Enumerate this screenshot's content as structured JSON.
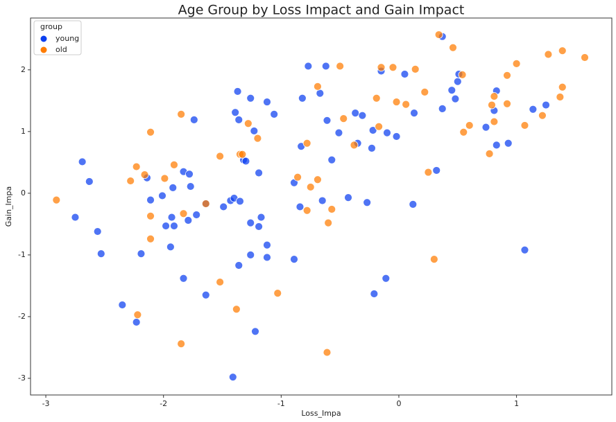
{
  "chart_data": {
    "type": "scatter",
    "title": "Age Group by Loss Impact and Gain Impact",
    "x_label": "Loss_Impa",
    "y_label": "Gain_Impa",
    "legend_title": "group",
    "legend": "upper left",
    "grid": false,
    "xlim": [
      -3.13,
      1.81
    ],
    "ylim": [
      -3.27,
      2.84
    ],
    "xticks": [
      -3,
      -2,
      -1,
      0,
      1
    ],
    "yticks": [
      -3,
      -2,
      -1,
      0,
      1,
      2
    ],
    "series": [
      {
        "name": "young",
        "color": "#0b3ff0",
        "x": [
          -2.75,
          -2.69,
          -2.63,
          -2.56,
          -2.53,
          -2.35,
          -2.23,
          -2.19,
          -2.14,
          -2.11,
          -2.01,
          -1.98,
          -1.94,
          -1.93,
          -1.92,
          -1.91,
          -1.83,
          -1.83,
          -1.79,
          -1.78,
          -1.77,
          -1.74,
          -1.72,
          -1.64,
          -1.64,
          -1.49,
          -1.43,
          -1.41,
          -1.4,
          -1.37,
          -1.39,
          -1.36,
          -1.35,
          -1.32,
          -1.3,
          -1.26,
          -1.26,
          -1.36,
          -1.26,
          -1.23,
          -1.22,
          -1.19,
          -1.19,
          -1.17,
          -1.12,
          -1.12,
          -1.12,
          -1.06,
          -0.89,
          -0.89,
          -0.84,
          -0.83,
          -0.82,
          -0.77,
          -0.67,
          -0.65,
          -0.62,
          -0.61,
          -0.57,
          -0.51,
          -0.43,
          -0.37,
          -0.35,
          -0.31,
          -0.27,
          -0.23,
          -0.22,
          -0.21,
          -0.15,
          -0.11,
          -0.1,
          -0.02,
          0.05,
          0.13,
          0.12,
          0.32,
          0.37,
          0.37,
          0.45,
          0.48,
          0.5,
          0.51,
          0.74,
          0.81,
          0.83,
          0.83,
          1.07,
          0.93,
          1.14,
          1.25
        ],
        "values": [
          -0.39,
          0.51,
          0.19,
          -0.62,
          -0.98,
          -1.81,
          -2.09,
          -0.98,
          0.25,
          -0.11,
          -0.04,
          -0.53,
          -0.87,
          -0.39,
          0.09,
          -0.53,
          0.35,
          -1.38,
          -0.44,
          0.31,
          0.11,
          1.19,
          -0.35,
          -0.17,
          -1.65,
          -0.22,
          -0.12,
          -2.98,
          -0.08,
          1.65,
          1.31,
          1.19,
          -0.13,
          0.54,
          0.52,
          1.54,
          -0.48,
          -1.17,
          -1.0,
          1.01,
          -2.24,
          -0.54,
          0.33,
          -0.39,
          1.48,
          -0.84,
          -1.04,
          1.28,
          -1.07,
          0.17,
          -0.22,
          0.76,
          1.54,
          2.06,
          1.62,
          -0.12,
          2.06,
          1.18,
          0.54,
          0.98,
          -0.07,
          1.3,
          0.81,
          1.26,
          -0.15,
          0.73,
          1.02,
          -1.63,
          1.98,
          -1.38,
          0.98,
          0.92,
          1.93,
          1.3,
          -0.18,
          0.37,
          2.54,
          1.37,
          1.67,
          1.53,
          1.81,
          1.93,
          1.07,
          1.34,
          1.66,
          0.78,
          -0.92,
          0.81,
          1.36,
          1.43
        ]
      },
      {
        "name": "old",
        "color": "#ff7c00",
        "x": [
          -2.91,
          -2.28,
          -2.23,
          -2.22,
          -2.16,
          -2.11,
          -2.11,
          -2.11,
          -1.99,
          -1.91,
          -1.85,
          -1.85,
          -1.83,
          -1.64,
          -1.52,
          -1.52,
          -1.35,
          -1.33,
          -1.28,
          -1.2,
          -1.38,
          -1.03,
          -0.86,
          -0.78,
          -0.78,
          -0.75,
          -0.69,
          -0.69,
          -0.61,
          -0.6,
          -0.57,
          -0.5,
          -0.47,
          -0.38,
          -0.19,
          -0.17,
          -0.15,
          -0.05,
          -0.02,
          0.06,
          0.14,
          0.22,
          0.25,
          0.3,
          0.34,
          0.46,
          0.54,
          0.55,
          0.6,
          0.77,
          0.79,
          0.81,
          0.81,
          0.92,
          0.92,
          1.0,
          1.07,
          1.22,
          1.27,
          1.37,
          1.39,
          1.39,
          1.58
        ],
        "values": [
          -0.11,
          0.2,
          0.43,
          -1.97,
          0.3,
          0.99,
          -0.37,
          -0.74,
          0.24,
          0.46,
          1.28,
          -2.44,
          -0.33,
          -0.17,
          0.6,
          -1.44,
          0.63,
          0.63,
          1.13,
          0.89,
          -1.88,
          -1.62,
          0.26,
          0.81,
          -0.28,
          0.1,
          1.73,
          0.22,
          -2.58,
          -0.48,
          -0.26,
          2.06,
          1.21,
          0.78,
          1.54,
          1.08,
          2.04,
          2.04,
          1.48,
          1.44,
          2.01,
          1.64,
          0.34,
          -1.07,
          2.57,
          2.36,
          1.92,
          0.99,
          1.1,
          0.64,
          1.43,
          1.57,
          1.16,
          1.91,
          1.45,
          2.1,
          1.1,
          1.26,
          2.25,
          1.56,
          2.31,
          1.72,
          2.2
        ]
      }
    ]
  }
}
